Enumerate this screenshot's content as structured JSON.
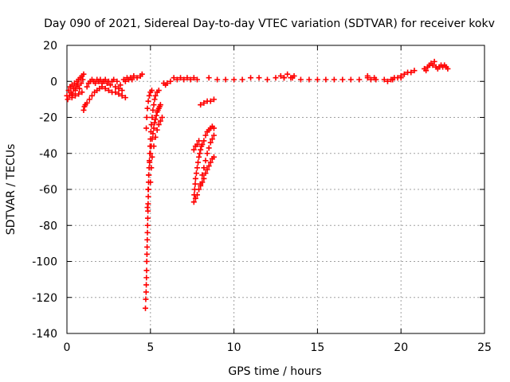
{
  "chart_data": {
    "type": "scatter",
    "title": "Day 090 of 2021, Sidereal Day-to-day VTEC variation (SDTVAR) for receiver kokv",
    "xlabel": "GPS time / hours",
    "ylabel": "SDTVAR / TECUs",
    "xlim": [
      0,
      25
    ],
    "ylim": [
      -140,
      20
    ],
    "xticks": [
      0,
      5,
      10,
      15,
      20,
      25
    ],
    "yticks": [
      -140,
      -120,
      -100,
      -80,
      -60,
      -40,
      -20,
      0,
      20
    ],
    "xtick_labels": [
      "0",
      "5",
      "10",
      "15",
      "20",
      "25"
    ],
    "ytick_labels": [
      "-140",
      "-120",
      "-100",
      "-80",
      "-60",
      "-40",
      "-20",
      "0",
      "20"
    ],
    "grid": true,
    "marker": "+",
    "marker_color": "#ff0000",
    "series": [
      {
        "name": "kokv",
        "points": [
          [
            0.0,
            -8
          ],
          [
            0.05,
            -10
          ],
          [
            0.1,
            -5
          ],
          [
            0.15,
            -8
          ],
          [
            0.2,
            -3
          ],
          [
            0.25,
            -6
          ],
          [
            0.3,
            -2
          ],
          [
            0.35,
            -7
          ],
          [
            0.4,
            -4
          ],
          [
            0.45,
            -1
          ],
          [
            0.5,
            -5
          ],
          [
            0.55,
            -3
          ],
          [
            0.6,
            0
          ],
          [
            0.65,
            -2
          ],
          [
            0.7,
            1
          ],
          [
            0.75,
            -4
          ],
          [
            0.8,
            2
          ],
          [
            0.85,
            -1
          ],
          [
            0.9,
            3
          ],
          [
            0.95,
            1
          ],
          [
            1.0,
            4
          ],
          [
            0.3,
            -9
          ],
          [
            0.5,
            -8
          ],
          [
            0.7,
            -7
          ],
          [
            0.9,
            -6
          ],
          [
            1.0,
            -16
          ],
          [
            1.05,
            -14
          ],
          [
            1.1,
            -13
          ],
          [
            1.2,
            -3
          ],
          [
            1.3,
            -1
          ],
          [
            1.4,
            0
          ],
          [
            1.5,
            1
          ],
          [
            1.6,
            0
          ],
          [
            1.7,
            -1
          ],
          [
            1.8,
            1
          ],
          [
            1.9,
            0
          ],
          [
            2.0,
            1
          ],
          [
            2.1,
            -1
          ],
          [
            2.2,
            0
          ],
          [
            2.3,
            1
          ],
          [
            2.4,
            -1
          ],
          [
            2.5,
            0
          ],
          [
            2.6,
            -2
          ],
          [
            2.7,
            0
          ],
          [
            2.8,
            1
          ],
          [
            2.9,
            -3
          ],
          [
            3.0,
            0
          ],
          [
            3.1,
            -4
          ],
          [
            3.2,
            -2
          ],
          [
            3.3,
            -5
          ],
          [
            3.4,
            1
          ],
          [
            3.5,
            0
          ],
          [
            3.6,
            2
          ],
          [
            3.7,
            1
          ],
          [
            3.8,
            2
          ],
          [
            3.9,
            1
          ],
          [
            4.0,
            3
          ],
          [
            4.2,
            2
          ],
          [
            4.4,
            3
          ],
          [
            4.5,
            4
          ],
          [
            1.2,
            -12
          ],
          [
            1.35,
            -10
          ],
          [
            1.5,
            -8
          ],
          [
            1.65,
            -6
          ],
          [
            1.8,
            -5
          ],
          [
            1.95,
            -4
          ],
          [
            2.1,
            -3
          ],
          [
            2.3,
            -4
          ],
          [
            2.5,
            -5
          ],
          [
            2.7,
            -6
          ],
          [
            2.9,
            -6
          ],
          [
            3.1,
            -7
          ],
          [
            3.3,
            -8
          ],
          [
            3.5,
            -9
          ],
          [
            4.7,
            -126
          ],
          [
            4.72,
            -121
          ],
          [
            4.74,
            -117
          ],
          [
            4.75,
            -113
          ],
          [
            4.76,
            -109
          ],
          [
            4.77,
            -105
          ],
          [
            4.78,
            -100
          ],
          [
            4.79,
            -96
          ],
          [
            4.8,
            -92
          ],
          [
            4.81,
            -88
          ],
          [
            4.82,
            -84
          ],
          [
            4.83,
            -80
          ],
          [
            4.84,
            -76
          ],
          [
            4.85,
            -72
          ],
          [
            4.86,
            -68
          ],
          [
            4.87,
            -64
          ],
          [
            4.88,
            -60
          ],
          [
            4.89,
            -56
          ],
          [
            4.9,
            -52
          ],
          [
            4.92,
            -48
          ],
          [
            4.94,
            -44
          ],
          [
            4.96,
            -40
          ],
          [
            4.98,
            -36
          ],
          [
            5.0,
            -32
          ],
          [
            5.03,
            -28
          ],
          [
            5.06,
            -24
          ],
          [
            5.1,
            -20
          ],
          [
            5.15,
            -16
          ],
          [
            5.2,
            -13
          ],
          [
            5.25,
            -10
          ],
          [
            5.3,
            -8
          ],
          [
            5.4,
            -6
          ],
          [
            5.5,
            -5
          ],
          [
            4.75,
            -26
          ],
          [
            4.78,
            -20
          ],
          [
            4.82,
            -15
          ],
          [
            4.87,
            -11
          ],
          [
            4.93,
            -8
          ],
          [
            5.0,
            -6
          ],
          [
            5.08,
            -5
          ],
          [
            4.82,
            -70
          ],
          [
            4.86,
            -60
          ],
          [
            4.9,
            -52
          ],
          [
            4.95,
            -45
          ],
          [
            5.0,
            -40
          ],
          [
            5.05,
            -36
          ],
          [
            5.1,
            -32
          ],
          [
            5.15,
            -29
          ],
          [
            5.2,
            -26
          ],
          [
            5.25,
            -23
          ],
          [
            5.3,
            -21
          ],
          [
            5.35,
            -19
          ],
          [
            5.4,
            -17
          ],
          [
            5.45,
            -16
          ],
          [
            5.5,
            -15
          ],
          [
            5.55,
            -14
          ],
          [
            5.6,
            -13
          ],
          [
            5.0,
            -56
          ],
          [
            5.05,
            -48
          ],
          [
            5.1,
            -42
          ],
          [
            5.2,
            -36
          ],
          [
            5.3,
            -31
          ],
          [
            5.4,
            -27
          ],
          [
            5.5,
            -24
          ],
          [
            5.6,
            -22
          ],
          [
            5.7,
            -20
          ],
          [
            5.8,
            -1
          ],
          [
            5.9,
            -2
          ],
          [
            6.0,
            -1
          ],
          [
            6.2,
            0
          ],
          [
            6.4,
            2
          ],
          [
            6.6,
            1
          ],
          [
            6.8,
            2
          ],
          [
            7.0,
            1
          ],
          [
            7.2,
            2
          ],
          [
            7.4,
            1
          ],
          [
            7.6,
            2
          ],
          [
            7.8,
            1
          ],
          [
            7.6,
            -67
          ],
          [
            7.62,
            -63
          ],
          [
            7.65,
            -60
          ],
          [
            7.68,
            -57
          ],
          [
            7.7,
            -54
          ],
          [
            7.75,
            -51
          ],
          [
            7.8,
            -48
          ],
          [
            7.85,
            -45
          ],
          [
            7.9,
            -42
          ],
          [
            7.95,
            -40
          ],
          [
            8.0,
            -38
          ],
          [
            8.05,
            -36
          ],
          [
            8.1,
            -35
          ],
          [
            8.2,
            -33
          ],
          [
            8.3,
            -30
          ],
          [
            8.4,
            -28
          ],
          [
            8.5,
            -27
          ],
          [
            8.6,
            -26
          ],
          [
            8.7,
            -25
          ],
          [
            8.8,
            -26
          ],
          [
            7.7,
            -65
          ],
          [
            7.8,
            -63
          ],
          [
            7.9,
            -60
          ],
          [
            8.0,
            -58
          ],
          [
            8.1,
            -56
          ],
          [
            8.2,
            -54
          ],
          [
            8.3,
            -51
          ],
          [
            8.4,
            -49
          ],
          [
            8.5,
            -47
          ],
          [
            8.6,
            -45
          ],
          [
            8.7,
            -43
          ],
          [
            8.8,
            -42
          ],
          [
            8.0,
            -57
          ],
          [
            8.1,
            -52
          ],
          [
            8.2,
            -48
          ],
          [
            8.3,
            -44
          ],
          [
            8.4,
            -40
          ],
          [
            8.5,
            -37
          ],
          [
            8.6,
            -34
          ],
          [
            8.7,
            -32
          ],
          [
            8.8,
            -30
          ],
          [
            7.6,
            -38
          ],
          [
            7.7,
            -36
          ],
          [
            7.8,
            -35
          ],
          [
            7.9,
            -33
          ],
          [
            8.0,
            -13
          ],
          [
            8.2,
            -12
          ],
          [
            8.4,
            -11
          ],
          [
            8.6,
            -11
          ],
          [
            8.8,
            -10
          ],
          [
            8.5,
            2
          ],
          [
            9.0,
            1
          ],
          [
            9.5,
            1
          ],
          [
            10.0,
            1
          ],
          [
            10.5,
            1
          ],
          [
            11.0,
            2
          ],
          [
            11.5,
            2
          ],
          [
            12.0,
            1
          ],
          [
            12.5,
            2
          ],
          [
            13.0,
            2
          ],
          [
            13.5,
            2
          ],
          [
            14.0,
            1
          ],
          [
            14.5,
            1
          ],
          [
            15.0,
            1
          ],
          [
            15.5,
            1
          ],
          [
            16.0,
            1
          ],
          [
            16.5,
            1
          ],
          [
            17.0,
            1
          ],
          [
            17.5,
            1
          ],
          [
            18.0,
            2
          ],
          [
            18.5,
            1
          ],
          [
            19.0,
            1
          ],
          [
            19.5,
            1
          ],
          [
            20.0,
            2
          ],
          [
            12.8,
            3
          ],
          [
            13.0,
            2
          ],
          [
            13.2,
            4
          ],
          [
            13.4,
            2
          ],
          [
            13.6,
            3
          ],
          [
            18.0,
            3
          ],
          [
            18.2,
            1
          ],
          [
            18.4,
            2
          ],
          [
            19.2,
            0
          ],
          [
            19.4,
            1
          ],
          [
            19.6,
            2
          ],
          [
            19.8,
            2
          ],
          [
            20.0,
            3
          ],
          [
            20.2,
            4
          ],
          [
            20.4,
            5
          ],
          [
            20.6,
            5
          ],
          [
            20.8,
            6
          ],
          [
            21.4,
            7
          ],
          [
            21.5,
            6
          ],
          [
            21.6,
            8
          ],
          [
            21.7,
            9
          ],
          [
            21.8,
            10
          ],
          [
            21.9,
            9
          ],
          [
            22.0,
            11
          ],
          [
            22.1,
            8
          ],
          [
            22.2,
            7
          ],
          [
            22.3,
            8
          ],
          [
            22.4,
            9
          ],
          [
            22.5,
            8
          ],
          [
            22.6,
            9
          ],
          [
            22.7,
            8
          ],
          [
            22.8,
            7
          ]
        ]
      }
    ]
  }
}
